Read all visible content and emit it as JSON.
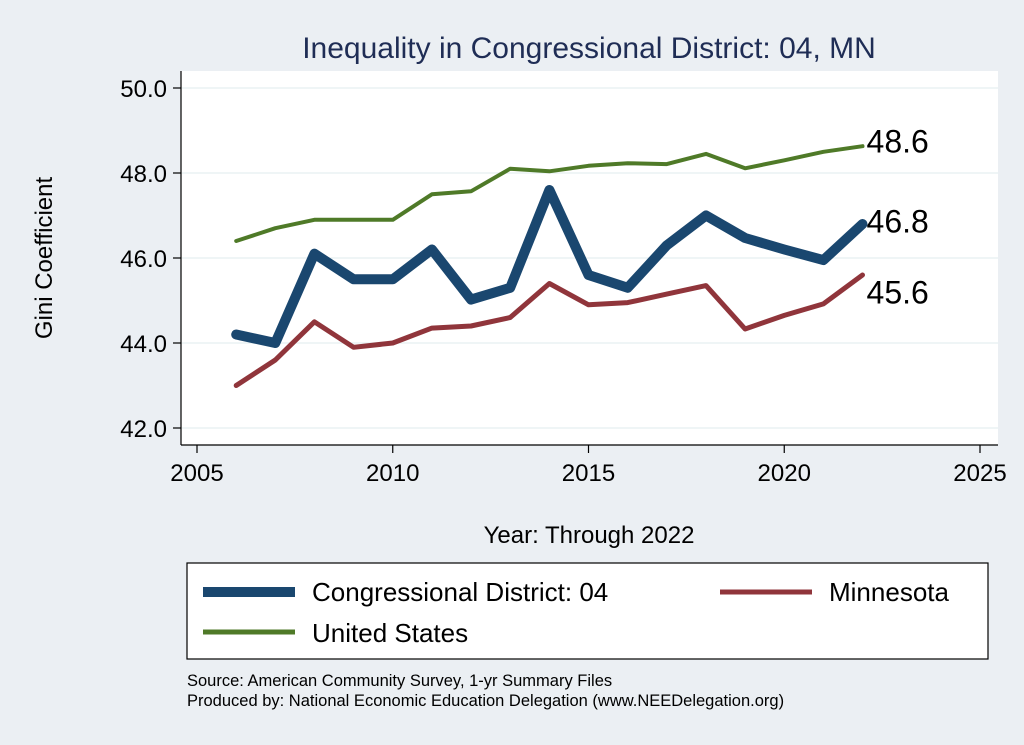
{
  "chart_data": {
    "type": "line",
    "title": "Inequality in Congressional District:  04, MN",
    "xlabel": "Year: Through 2022",
    "ylabel": "Gini Coefficient",
    "xlim": [
      2005,
      2025
    ],
    "ylim": [
      42.0,
      50.0
    ],
    "x_ticks": [
      "2005",
      "2010",
      "2015",
      "2020",
      "2025"
    ],
    "y_ticks": [
      "42.0",
      "44.0",
      "46.0",
      "48.0",
      "50.0"
    ],
    "x": [
      2006,
      2007,
      2008,
      2009,
      2010,
      2011,
      2012,
      2013,
      2014,
      2015,
      2016,
      2017,
      2018,
      2019,
      2020,
      2021,
      2022
    ],
    "series": [
      {
        "name": "United States",
        "color": "#4f7a28",
        "values": [
          46.4,
          46.7,
          46.9,
          46.9,
          46.9,
          47.5,
          47.57,
          48.1,
          48.04,
          48.17,
          48.23,
          48.21,
          48.45,
          48.11,
          48.3,
          48.5,
          48.63
        ],
        "end_label": "48.6"
      },
      {
        "name": "Congressional District:  04",
        "color": "#1a476f",
        "values": [
          44.2,
          44.0,
          46.1,
          45.5,
          45.5,
          46.2,
          45.02,
          45.3,
          47.6,
          45.6,
          45.3,
          46.3,
          47.0,
          46.47,
          46.2,
          45.95,
          46.8
        ],
        "end_label": "46.8"
      },
      {
        "name": "Minnesota",
        "color": "#90353b",
        "values": [
          43.0,
          43.6,
          44.5,
          43.9,
          44.0,
          44.35,
          44.4,
          44.6,
          45.4,
          44.9,
          44.95,
          45.15,
          45.35,
          44.33,
          44.65,
          44.92,
          45.6
        ],
        "end_label": "45.6"
      }
    ],
    "legend": {
      "position": "bottom",
      "entries": [
        "Congressional District:  04",
        "Minnesota",
        "United States"
      ]
    },
    "notes": [
      "Source: American Community Survey, 1-yr Summary Files",
      "Produced by: National Economic Education Delegation (www.NEEDelegation.org)"
    ]
  }
}
